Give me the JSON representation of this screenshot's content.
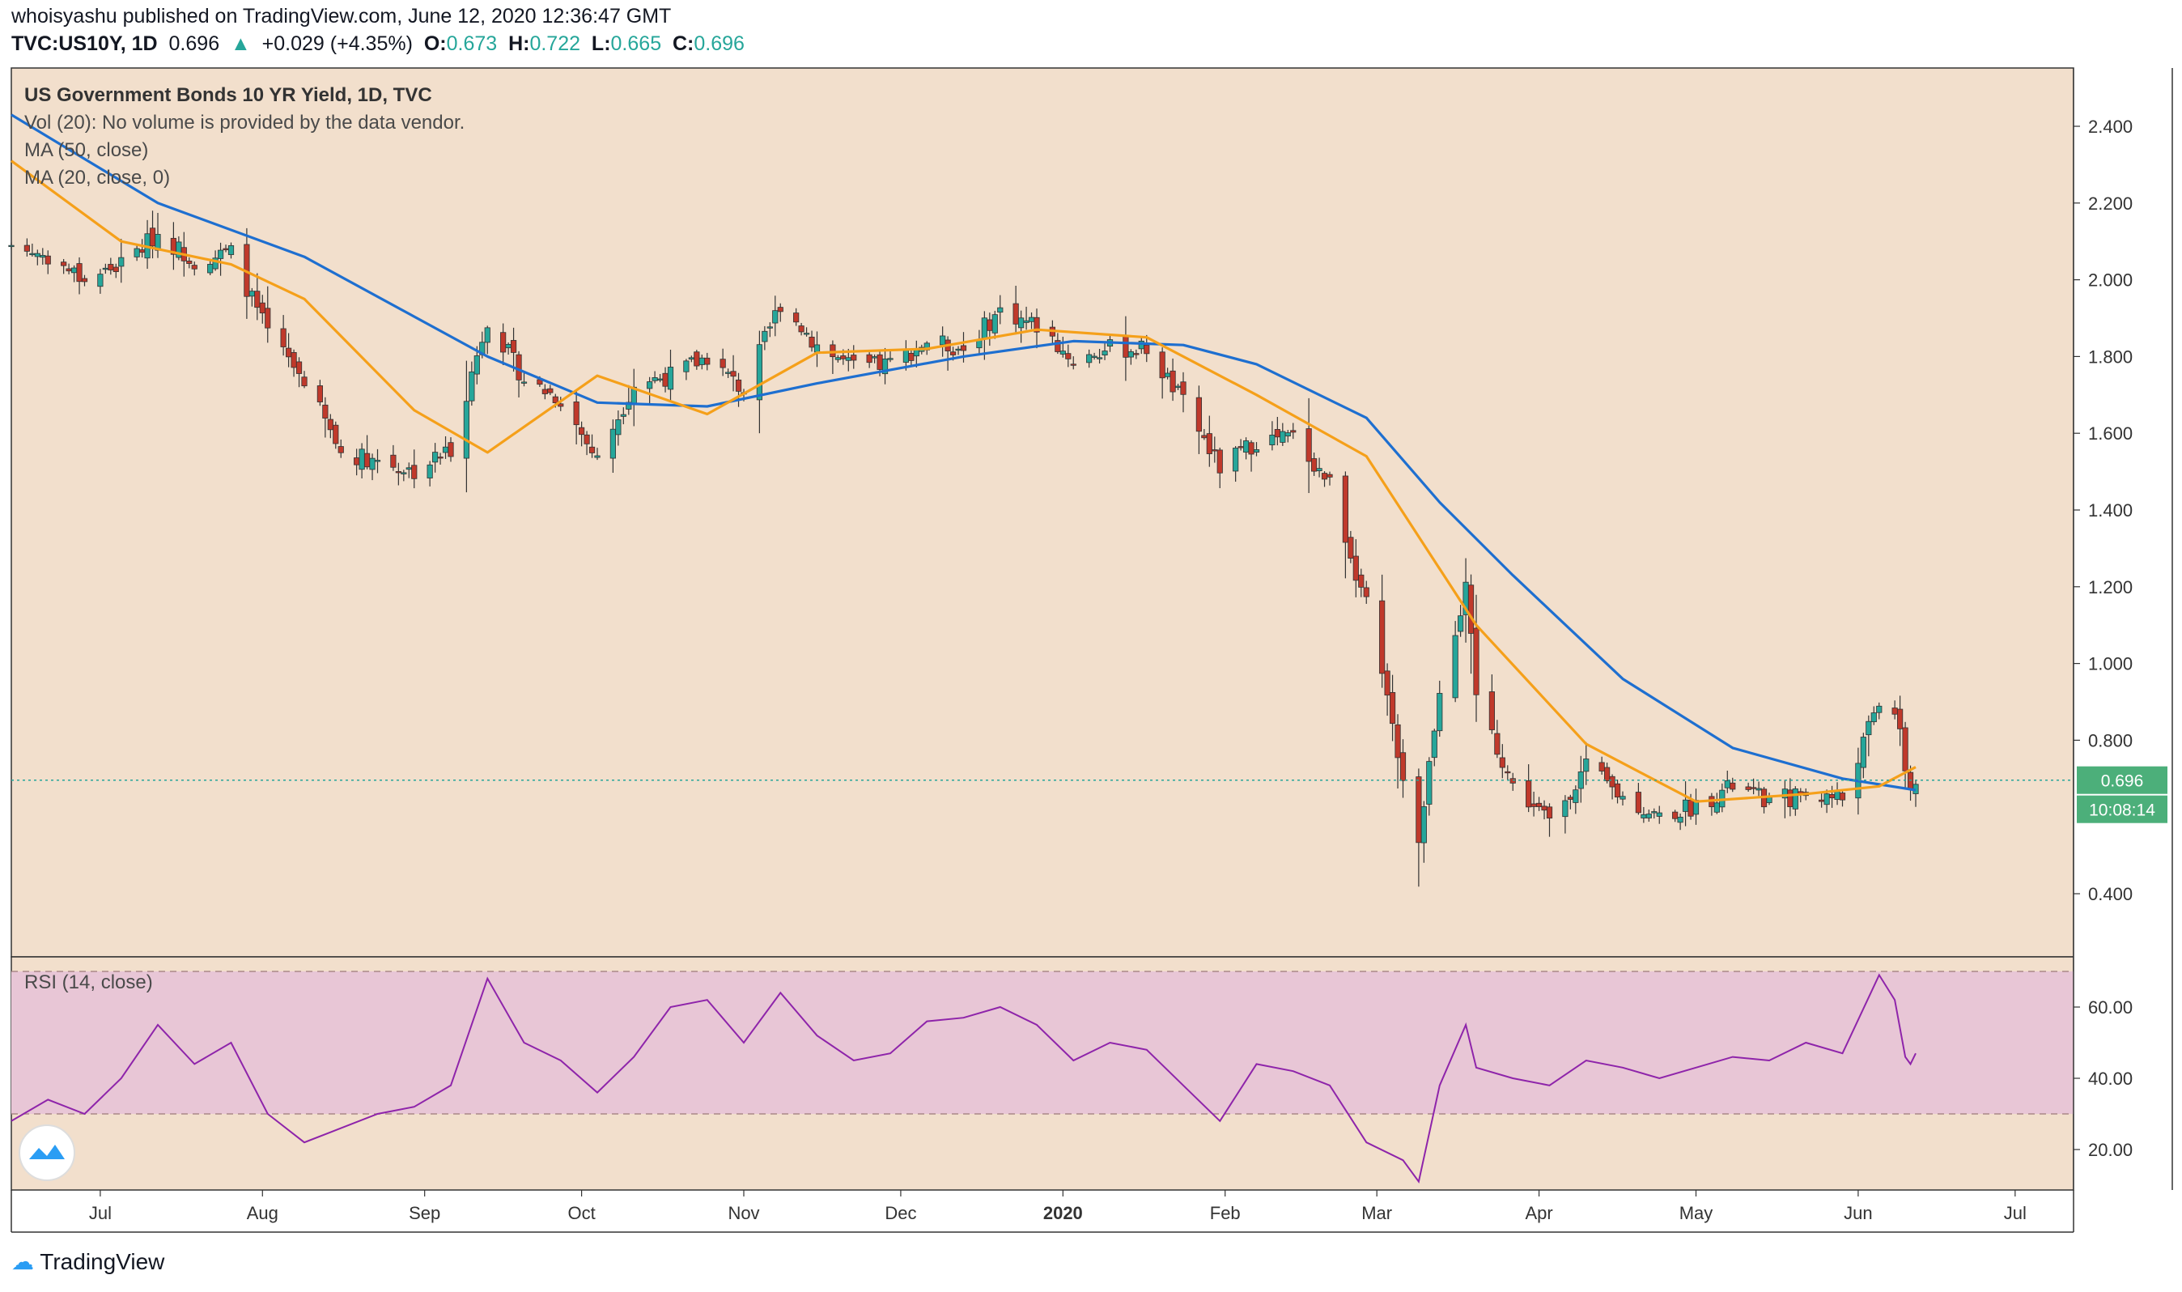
{
  "header": {
    "published": "whoisyashu published on TradingView.com, June 12, 2020 12:36:47 GMT",
    "symbol": "TVC:US10Y, 1D",
    "last": "0.696",
    "change": "+0.029 (+4.35%)",
    "o_label": "O:",
    "o": "0.673",
    "h_label": "H:",
    "h": "0.722",
    "l_label": "L:",
    "l": "0.665",
    "c_label": "C:",
    "c": "0.696"
  },
  "legend": {
    "title": "US Government Bonds 10 YR Yield, 1D, TVC",
    "vol": "Vol (20): No volume is provided by the data vendor.",
    "ma50": "MA (50, close)",
    "ma20": "MA (20, close, 0)",
    "rsi": "RSI (14, close)"
  },
  "price_tag": "0.696",
  "countdown": "10:08:14",
  "footer": {
    "brand": "TradingView"
  },
  "colors": {
    "background": "#f2dfcc",
    "up": "#26a69a",
    "down": "#c0392b",
    "ma50": "#1e6fd0",
    "ma20": "#f5a01a",
    "rsi_line": "#8e24aa",
    "rsi_band": "#e8c6d6"
  },
  "chart_data": [
    {
      "type": "candlestick",
      "title": "US Government Bonds 10 YR Yield, 1D, TVC",
      "y_ticks": [
        "2.400",
        "2.200",
        "2.000",
        "1.800",
        "1.600",
        "1.400",
        "1.200",
        "1.000",
        "0.800",
        "0.400"
      ],
      "x_ticks": [
        "Jul",
        "Aug",
        "Sep",
        "Oct",
        "Nov",
        "Dec",
        "2020",
        "Feb",
        "Mar",
        "Apr",
        "May",
        "Jun",
        "Jul"
      ],
      "ylim": [
        0.25,
        2.5
      ],
      "last_value": 0.696,
      "close_path": [
        [
          "2019-06-14",
          2.09
        ],
        [
          "2019-06-21",
          2.06
        ],
        [
          "2019-06-28",
          2.0
        ],
        [
          "2019-07-05",
          2.04
        ],
        [
          "2019-07-12",
          2.12
        ],
        [
          "2019-07-19",
          2.05
        ],
        [
          "2019-07-26",
          2.07
        ],
        [
          "2019-08-02",
          1.86
        ],
        [
          "2019-08-09",
          1.74
        ],
        [
          "2019-08-16",
          1.55
        ],
        [
          "2019-08-23",
          1.53
        ],
        [
          "2019-08-30",
          1.5
        ],
        [
          "2019-09-06",
          1.56
        ],
        [
          "2019-09-13",
          1.9
        ],
        [
          "2019-09-20",
          1.74
        ],
        [
          "2019-09-27",
          1.69
        ],
        [
          "2019-10-04",
          1.53
        ],
        [
          "2019-10-11",
          1.73
        ],
        [
          "2019-10-18",
          1.75
        ],
        [
          "2019-10-25",
          1.8
        ],
        [
          "2019-11-01",
          1.71
        ],
        [
          "2019-11-08",
          1.94
        ],
        [
          "2019-11-15",
          1.83
        ],
        [
          "2019-11-22",
          1.77
        ],
        [
          "2019-11-29",
          1.78
        ],
        [
          "2019-12-06",
          1.84
        ],
        [
          "2019-12-13",
          1.82
        ],
        [
          "2019-12-20",
          1.92
        ],
        [
          "2019-12-27",
          1.88
        ],
        [
          "2020-01-03",
          1.79
        ],
        [
          "2020-01-10",
          1.82
        ],
        [
          "2020-01-17",
          1.82
        ],
        [
          "2020-01-24",
          1.68
        ],
        [
          "2020-01-31",
          1.51
        ],
        [
          "2020-02-07",
          1.58
        ],
        [
          "2020-02-14",
          1.59
        ],
        [
          "2020-02-21",
          1.47
        ],
        [
          "2020-02-28",
          1.15
        ],
        [
          "2020-03-06",
          0.71
        ],
        [
          "2020-03-09",
          0.54
        ],
        [
          "2020-03-13",
          0.94
        ],
        [
          "2020-03-18",
          1.19
        ],
        [
          "2020-03-20",
          0.92
        ],
        [
          "2020-03-27",
          0.68
        ],
        [
          "2020-04-03",
          0.59
        ],
        [
          "2020-04-10",
          0.73
        ],
        [
          "2020-04-17",
          0.65
        ],
        [
          "2020-04-24",
          0.6
        ],
        [
          "2020-05-01",
          0.63
        ],
        [
          "2020-05-08",
          0.68
        ],
        [
          "2020-05-15",
          0.64
        ],
        [
          "2020-05-22",
          0.66
        ],
        [
          "2020-05-29",
          0.65
        ],
        [
          "2020-06-05",
          0.9
        ],
        [
          "2020-06-08",
          0.88
        ],
        [
          "2020-06-10",
          0.73
        ],
        [
          "2020-06-11",
          0.67
        ],
        [
          "2020-06-12",
          0.696
        ]
      ],
      "series": [
        {
          "name": "MA (50, close)",
          "values": [
            [
              "2019-06-14",
              2.43
            ],
            [
              "2019-07-12",
              2.2
            ],
            [
              "2019-08-09",
              2.06
            ],
            [
              "2019-09-13",
              1.8
            ],
            [
              "2019-10-04",
              1.68
            ],
            [
              "2019-10-25",
              1.67
            ],
            [
              "2019-11-15",
              1.73
            ],
            [
              "2019-12-13",
              1.8
            ],
            [
              "2020-01-03",
              1.84
            ],
            [
              "2020-01-24",
              1.83
            ],
            [
              "2020-02-07",
              1.78
            ],
            [
              "2020-02-28",
              1.64
            ],
            [
              "2020-03-13",
              1.42
            ],
            [
              "2020-03-27",
              1.23
            ],
            [
              "2020-04-17",
              0.96
            ],
            [
              "2020-05-08",
              0.78
            ],
            [
              "2020-05-29",
              0.7
            ],
            [
              "2020-06-12",
              0.67
            ]
          ]
        },
        {
          "name": "MA (20, close, 0)",
          "values": [
            [
              "2019-06-14",
              2.31
            ],
            [
              "2019-07-05",
              2.1
            ],
            [
              "2019-07-26",
              2.04
            ],
            [
              "2019-08-09",
              1.95
            ],
            [
              "2019-08-30",
              1.66
            ],
            [
              "2019-09-13",
              1.55
            ],
            [
              "2019-10-04",
              1.75
            ],
            [
              "2019-10-25",
              1.65
            ],
            [
              "2019-11-15",
              1.81
            ],
            [
              "2019-12-06",
              1.82
            ],
            [
              "2019-12-27",
              1.87
            ],
            [
              "2020-01-17",
              1.85
            ],
            [
              "2020-02-07",
              1.7
            ],
            [
              "2020-02-28",
              1.54
            ],
            [
              "2020-03-20",
              1.1
            ],
            [
              "2020-04-10",
              0.79
            ],
            [
              "2020-05-01",
              0.64
            ],
            [
              "2020-05-22",
              0.66
            ],
            [
              "2020-06-05",
              0.68
            ],
            [
              "2020-06-12",
              0.73
            ]
          ]
        }
      ]
    },
    {
      "type": "line",
      "title": "RSI (14, close)",
      "y_ticks": [
        "60.00",
        "40.00",
        "20.00"
      ],
      "ylim": [
        5,
        80
      ],
      "band": [
        30,
        70
      ],
      "series": [
        {
          "name": "RSI (14, close)",
          "values": [
            [
              "2019-06-14",
              28
            ],
            [
              "2019-06-21",
              34
            ],
            [
              "2019-06-28",
              30
            ],
            [
              "2019-07-05",
              40
            ],
            [
              "2019-07-12",
              55
            ],
            [
              "2019-07-19",
              44
            ],
            [
              "2019-07-26",
              50
            ],
            [
              "2019-08-02",
              30
            ],
            [
              "2019-08-09",
              22
            ],
            [
              "2019-08-16",
              26
            ],
            [
              "2019-08-23",
              30
            ],
            [
              "2019-08-30",
              32
            ],
            [
              "2019-09-06",
              38
            ],
            [
              "2019-09-13",
              68
            ],
            [
              "2019-09-20",
              50
            ],
            [
              "2019-09-27",
              45
            ],
            [
              "2019-10-04",
              36
            ],
            [
              "2019-10-11",
              46
            ],
            [
              "2019-10-18",
              60
            ],
            [
              "2019-10-25",
              62
            ],
            [
              "2019-11-01",
              50
            ],
            [
              "2019-11-08",
              64
            ],
            [
              "2019-11-15",
              52
            ],
            [
              "2019-11-22",
              45
            ],
            [
              "2019-11-29",
              47
            ],
            [
              "2019-12-06",
              56
            ],
            [
              "2019-12-13",
              57
            ],
            [
              "2019-12-20",
              60
            ],
            [
              "2019-12-27",
              55
            ],
            [
              "2020-01-03",
              45
            ],
            [
              "2020-01-10",
              50
            ],
            [
              "2020-01-17",
              48
            ],
            [
              "2020-01-24",
              38
            ],
            [
              "2020-01-31",
              28
            ],
            [
              "2020-02-07",
              44
            ],
            [
              "2020-02-14",
              42
            ],
            [
              "2020-02-21",
              38
            ],
            [
              "2020-02-28",
              22
            ],
            [
              "2020-03-06",
              17
            ],
            [
              "2020-03-09",
              11
            ],
            [
              "2020-03-13",
              38
            ],
            [
              "2020-03-18",
              55
            ],
            [
              "2020-03-20",
              43
            ],
            [
              "2020-03-27",
              40
            ],
            [
              "2020-04-03",
              38
            ],
            [
              "2020-04-10",
              45
            ],
            [
              "2020-04-17",
              43
            ],
            [
              "2020-04-24",
              40
            ],
            [
              "2020-05-01",
              43
            ],
            [
              "2020-05-08",
              46
            ],
            [
              "2020-05-15",
              45
            ],
            [
              "2020-05-22",
              50
            ],
            [
              "2020-05-29",
              47
            ],
            [
              "2020-06-05",
              69
            ],
            [
              "2020-06-08",
              62
            ],
            [
              "2020-06-10",
              46
            ],
            [
              "2020-06-11",
              44
            ],
            [
              "2020-06-12",
              47
            ]
          ]
        }
      ]
    }
  ]
}
